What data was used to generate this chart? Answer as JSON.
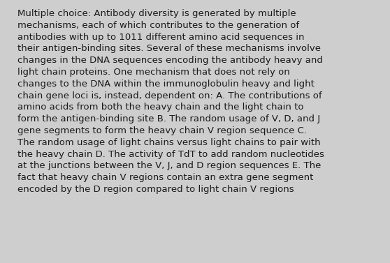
{
  "background_color": "#cecece",
  "text_color": "#1a1a1a",
  "font_size": 9.5,
  "font_family": "DejaVu Sans",
  "lines": [
    "Multiple choice: Antibody diversity is generated by multiple",
    "mechanisms, each of which contributes to the generation of",
    "antibodies with up to 1011 different amino acid sequences in",
    "their antigen-binding sites. Several of these mechanisms involve",
    "changes in the DNA sequences encoding the antibody heavy and",
    "light chain proteins. One mechanism that does not rely on",
    "changes to the DNA within the immunoglobulin heavy and light",
    "chain gene loci is, instead, dependent on: A. The contributions of",
    "amino acids from both the heavy chain and the light chain to",
    "form the antigen-binding site B. The random usage of V, D, and J",
    "gene segments to form the heavy chain V region sequence C.",
    "The random usage of light chains versus light chains to pair with",
    "the heavy chain D. The activity of TdT to add random nucleotides",
    "at the junctions between the V, J, and D region sequences E. The",
    "fact that heavy chain V regions contain an extra gene segment",
    "encoded by the D region compared to light chain V regions"
  ],
  "fig_width": 5.58,
  "fig_height": 3.77,
  "dpi": 100
}
